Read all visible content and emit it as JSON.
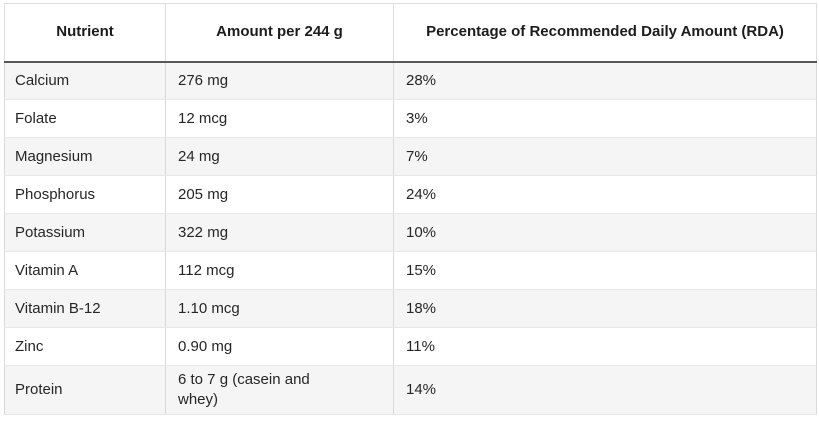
{
  "chart_data": {
    "type": "table",
    "title": "",
    "columns": [
      {
        "key": "nutrient",
        "label": "Nutrient"
      },
      {
        "key": "amount",
        "label": "Amount per 244 g"
      },
      {
        "key": "rda",
        "label": "Percentage of Recommended Daily Amount (RDA)"
      }
    ],
    "rows": [
      {
        "nutrient": "Calcium",
        "amount": "276 mg",
        "rda": "28%"
      },
      {
        "nutrient": "Folate",
        "amount": "12 mcg",
        "rda": "3%"
      },
      {
        "nutrient": "Magnesium",
        "amount": "24 mg",
        "rda": "7%"
      },
      {
        "nutrient": "Phosphorus",
        "amount": "205 mg",
        "rda": "24%"
      },
      {
        "nutrient": "Potassium",
        "amount": "322 mg",
        "rda": "10%"
      },
      {
        "nutrient": "Vitamin A",
        "amount": "112 mcg",
        "rda": "15%"
      },
      {
        "nutrient": "Vitamin B-12",
        "amount": "1.10 mcg",
        "rda": "18%"
      },
      {
        "nutrient": "Zinc",
        "amount": "0.90 mg",
        "rda": "11%"
      },
      {
        "nutrient": "Protein",
        "amount": "6 to 7 g (casein and whey)",
        "rda": "14%"
      }
    ],
    "layout": {
      "header_alignment": "center",
      "body_alignment": "left",
      "alternating_rows": true,
      "first_data_row_shaded": true
    }
  },
  "colors": {
    "header_rule": "#58595b",
    "row_alt": "#f5f5f6",
    "grid_line": "#dedede",
    "text": "#262626"
  }
}
